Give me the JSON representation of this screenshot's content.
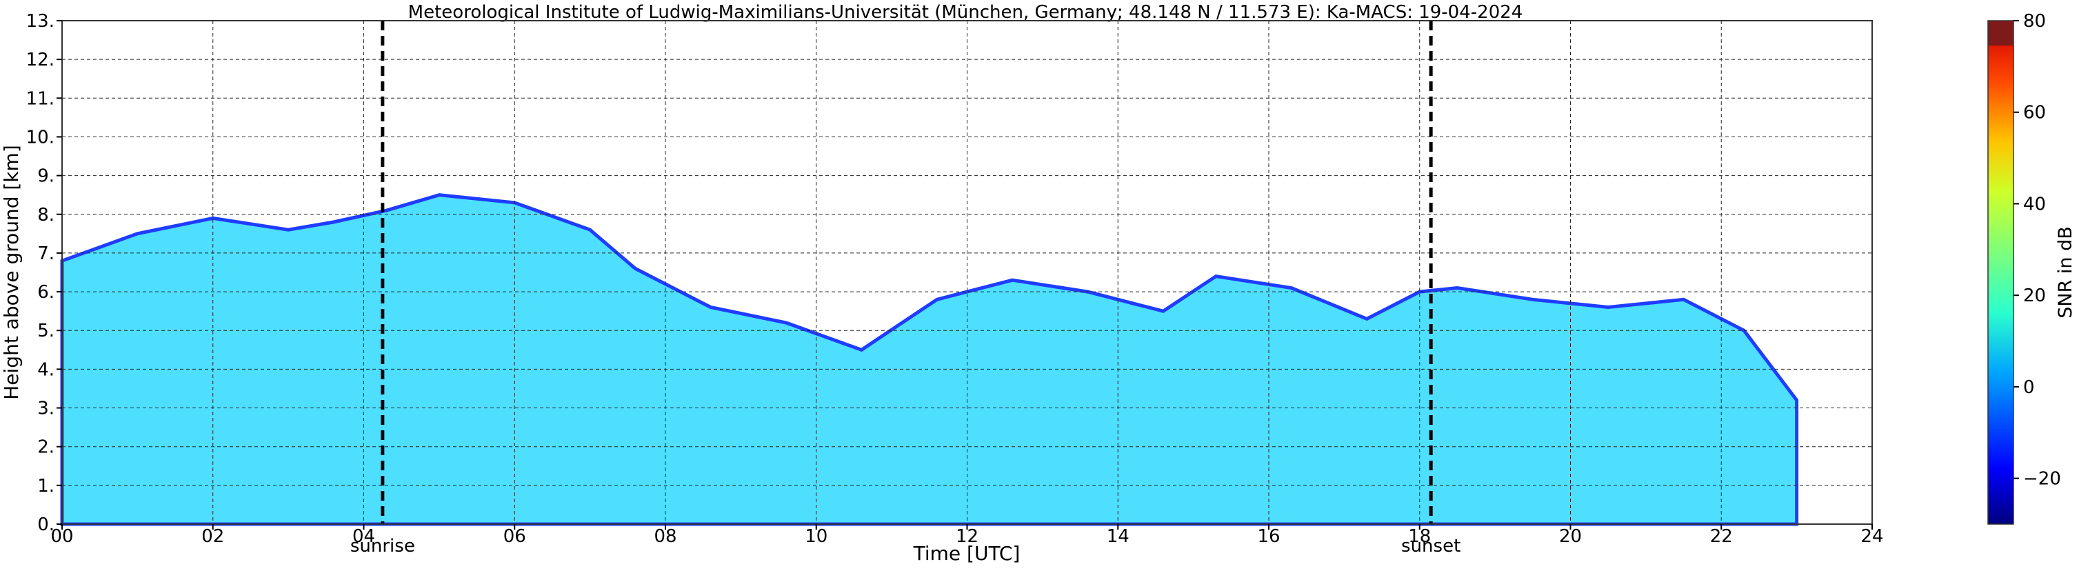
{
  "chart_data": {
    "type": "heatmap",
    "title": "Meteorological Institute of Ludwig-Maximilians-Universität (München, Germany; 48.148 N / 11.573 E):    Ka-MACS: 19-04-2024",
    "xlabel": "Time [UTC]",
    "ylabel": "Height above ground [km]",
    "xlim": [
      0,
      24
    ],
    "ylim": [
      0,
      13
    ],
    "x_ticks": [
      "00",
      "02",
      "04",
      "06",
      "08",
      "10",
      "12",
      "14",
      "16",
      "18",
      "20",
      "22",
      "24"
    ],
    "y_ticks": [
      "0.",
      "1.",
      "2.",
      "3.",
      "4.",
      "5.",
      "6.",
      "7.",
      "8.",
      "9.",
      "10.",
      "11.",
      "12.",
      "13."
    ],
    "grid": "dashed, every 1 km and every 2 h",
    "markers": [
      {
        "label": "sunrise",
        "time_h": 4.25
      },
      {
        "label": "sunset",
        "time_h": 18.15
      }
    ],
    "colorbar": {
      "label": "SNR in dB",
      "range": [
        -30,
        80
      ],
      "ticks": [
        "−20",
        "0",
        "20",
        "40",
        "60",
        "80"
      ],
      "colormap": "jet"
    },
    "echo_regions": [
      {
        "t": [
          0.0,
          1.0,
          2.0,
          3.0,
          3.6,
          4.3,
          5.0,
          6.0,
          7.0,
          7.6,
          8.6,
          9.6,
          10.6,
          11.6,
          12.6,
          13.6,
          14.6,
          15.3,
          16.3,
          17.3,
          18.0,
          18.5,
          19.5,
          20.5,
          21.5,
          22.3,
          23.0
        ],
        "top_km": [
          6.8,
          7.5,
          7.9,
          7.6,
          7.8,
          8.1,
          8.5,
          8.3,
          7.6,
          6.6,
          5.6,
          5.2,
          4.5,
          5.8,
          6.3,
          6.0,
          5.5,
          6.4,
          6.1,
          5.3,
          6.0,
          6.1,
          5.8,
          5.6,
          5.8,
          5.0,
          3.2
        ]
      }
    ]
  }
}
